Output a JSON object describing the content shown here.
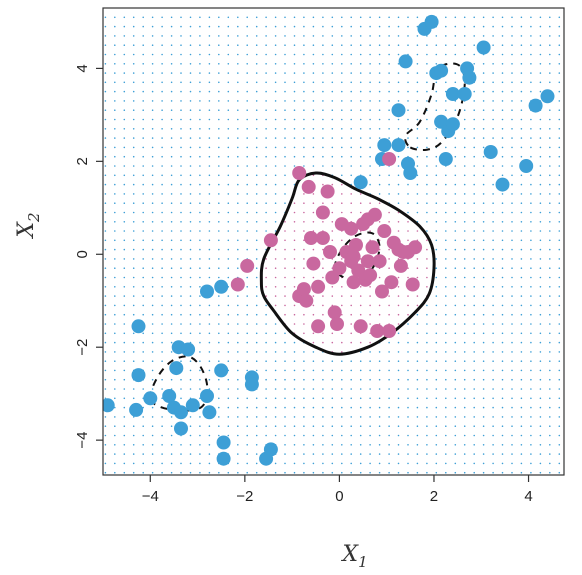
{
  "chart_data": {
    "type": "scatter",
    "title": "",
    "xlabel": "X",
    "xlabel_subscript": "1",
    "ylabel": "X",
    "ylabel_subscript": "2",
    "xlim": [
      -5.0,
      4.75
    ],
    "ylim": [
      -4.75,
      5.3
    ],
    "xticks": [
      -4,
      -2,
      0,
      2,
      4
    ],
    "yticks": [
      -4,
      -2,
      0,
      2,
      4
    ],
    "xtick_labels": [
      "−4",
      "−2",
      "0",
      "2",
      "4"
    ],
    "ytick_labels": [
      "−4",
      "−2",
      "0",
      "2",
      "4"
    ],
    "background": "dotted grid colored by predicted class (blue outside boundary, pink inside)",
    "colors": {
      "blue": "#3d9fd6",
      "pink": "#c9689f",
      "boundary": "#111111"
    },
    "series": [
      {
        "class": "blue",
        "color": "#3d9fd6",
        "points": [
          [
            -4.9,
            -3.25
          ],
          [
            -4.3,
            -3.35
          ],
          [
            -4.25,
            -2.6
          ],
          [
            -4.25,
            -1.55
          ],
          [
            -4.0,
            -3.1
          ],
          [
            -3.6,
            -3.05
          ],
          [
            -3.5,
            -3.3
          ],
          [
            -3.45,
            -2.45
          ],
          [
            -3.4,
            -2.0
          ],
          [
            -3.35,
            -3.75
          ],
          [
            -3.35,
            -3.4
          ],
          [
            -3.2,
            -2.05
          ],
          [
            -3.1,
            -3.25
          ],
          [
            -2.8,
            -3.05
          ],
          [
            -2.75,
            -3.4
          ],
          [
            -2.5,
            -2.5
          ],
          [
            -2.45,
            -4.05
          ],
          [
            -2.45,
            -4.4
          ],
          [
            -1.85,
            -2.65
          ],
          [
            -1.85,
            -2.8
          ],
          [
            -1.55,
            -4.4
          ],
          [
            -1.45,
            -4.2
          ],
          [
            -2.8,
            -0.8
          ],
          [
            -2.5,
            -0.7
          ],
          [
            0.45,
            1.55
          ],
          [
            0.9,
            2.05
          ],
          [
            0.95,
            2.35
          ],
          [
            1.25,
            2.35
          ],
          [
            1.25,
            3.1
          ],
          [
            1.4,
            4.15
          ],
          [
            1.45,
            1.95
          ],
          [
            1.5,
            1.75
          ],
          [
            1.8,
            4.85
          ],
          [
            1.95,
            5.0
          ],
          [
            2.05,
            3.9
          ],
          [
            2.15,
            3.95
          ],
          [
            2.15,
            2.85
          ],
          [
            2.25,
            2.05
          ],
          [
            2.3,
            2.65
          ],
          [
            2.4,
            2.8
          ],
          [
            2.4,
            3.45
          ],
          [
            2.65,
            3.45
          ],
          [
            2.7,
            4.0
          ],
          [
            2.75,
            3.8
          ],
          [
            3.05,
            4.45
          ],
          [
            3.2,
            2.2
          ],
          [
            3.45,
            1.5
          ],
          [
            3.95,
            1.9
          ],
          [
            4.15,
            3.2
          ],
          [
            4.4,
            3.4
          ]
        ]
      },
      {
        "class": "pink",
        "color": "#c9689f",
        "points": [
          [
            -2.15,
            -0.65
          ],
          [
            -1.95,
            -0.25
          ],
          [
            -1.45,
            0.3
          ],
          [
            -0.85,
            1.75
          ],
          [
            -0.65,
            1.45
          ],
          [
            -0.85,
            -0.9
          ],
          [
            -0.75,
            -0.75
          ],
          [
            -0.7,
            -1.0
          ],
          [
            -0.45,
            -0.7
          ],
          [
            -0.55,
            -0.2
          ],
          [
            -0.45,
            -1.55
          ],
          [
            -0.35,
            0.35
          ],
          [
            -0.25,
            1.35
          ],
          [
            -0.2,
            0.05
          ],
          [
            -0.15,
            -0.5
          ],
          [
            -0.1,
            -1.25
          ],
          [
            -0.05,
            -1.5
          ],
          [
            0.0,
            -0.3
          ],
          [
            0.05,
            0.65
          ],
          [
            0.15,
            0.05
          ],
          [
            0.25,
            -0.15
          ],
          [
            0.3,
            -0.6
          ],
          [
            0.35,
            0.2
          ],
          [
            0.4,
            -0.35
          ],
          [
            0.45,
            -1.55
          ],
          [
            0.5,
            0.65
          ],
          [
            0.55,
            -0.55
          ],
          [
            0.6,
            0.75
          ],
          [
            0.6,
            -0.15
          ],
          [
            0.65,
            -0.45
          ],
          [
            0.7,
            0.15
          ],
          [
            0.75,
            0.85
          ],
          [
            0.8,
            -1.65
          ],
          [
            0.85,
            -0.15
          ],
          [
            0.95,
            0.5
          ],
          [
            1.05,
            -1.65
          ],
          [
            1.05,
            2.05
          ],
          [
            1.1,
            -0.6
          ],
          [
            1.15,
            0.25
          ],
          [
            1.25,
            0.1
          ],
          [
            1.3,
            -0.25
          ],
          [
            1.35,
            0.05
          ],
          [
            1.45,
            0.05
          ],
          [
            1.55,
            -0.65
          ],
          [
            1.6,
            0.15
          ],
          [
            -0.35,
            0.9
          ],
          [
            0.3,
            -0.05
          ],
          [
            -0.6,
            0.35
          ],
          [
            0.9,
            -0.8
          ],
          [
            0.25,
            0.55
          ]
        ]
      }
    ],
    "bayes_boundary": {
      "style": "dashed",
      "curves": [
        [
          [
            -4.0,
            -3.1
          ],
          [
            -3.85,
            -2.65
          ],
          [
            -3.55,
            -2.3
          ],
          [
            -3.2,
            -2.2
          ],
          [
            -2.95,
            -2.4
          ],
          [
            -2.8,
            -2.8
          ],
          [
            -2.85,
            -3.2
          ],
          [
            -3.05,
            -3.35
          ],
          [
            -3.35,
            -3.35
          ],
          [
            -3.75,
            -3.3
          ],
          [
            -4.0,
            -3.1
          ]
        ],
        [
          [
            1.5,
            2.3
          ],
          [
            1.85,
            2.25
          ],
          [
            2.15,
            2.4
          ],
          [
            2.45,
            2.85
          ],
          [
            2.6,
            3.3
          ],
          [
            2.65,
            3.75
          ],
          [
            2.55,
            4.05
          ],
          [
            2.3,
            4.1
          ],
          [
            2.05,
            3.95
          ],
          [
            1.95,
            3.45
          ],
          [
            1.7,
            2.85
          ],
          [
            1.4,
            2.55
          ],
          [
            1.5,
            2.3
          ]
        ],
        [
          [
            -0.1,
            -0.3
          ],
          [
            0.05,
            0.1
          ],
          [
            0.35,
            0.4
          ],
          [
            0.7,
            0.45
          ],
          [
            0.85,
            0.15
          ],
          [
            0.7,
            -0.3
          ],
          [
            0.4,
            -0.55
          ],
          [
            0.1,
            -0.5
          ],
          [
            -0.1,
            -0.3
          ]
        ]
      ]
    },
    "classifier_boundary": {
      "style": "solid",
      "curve": [
        [
          -1.65,
          -0.6
        ],
        [
          -1.6,
          -0.1
        ],
        [
          -1.25,
          0.6
        ],
        [
          -1.0,
          1.2
        ],
        [
          -0.85,
          1.6
        ],
        [
          -0.5,
          1.75
        ],
        [
          -0.1,
          1.65
        ],
        [
          0.35,
          1.4
        ],
        [
          0.8,
          1.2
        ],
        [
          1.25,
          0.95
        ],
        [
          1.7,
          0.6
        ],
        [
          1.95,
          0.2
        ],
        [
          2.0,
          -0.3
        ],
        [
          1.9,
          -0.85
        ],
        [
          1.6,
          -1.25
        ],
        [
          1.1,
          -1.7
        ],
        [
          0.6,
          -2.0
        ],
        [
          0.0,
          -2.15
        ],
        [
          -0.5,
          -2.0
        ],
        [
          -1.0,
          -1.7
        ],
        [
          -1.4,
          -1.2
        ],
        [
          -1.6,
          -0.9
        ],
        [
          -1.65,
          -0.6
        ]
      ]
    }
  }
}
